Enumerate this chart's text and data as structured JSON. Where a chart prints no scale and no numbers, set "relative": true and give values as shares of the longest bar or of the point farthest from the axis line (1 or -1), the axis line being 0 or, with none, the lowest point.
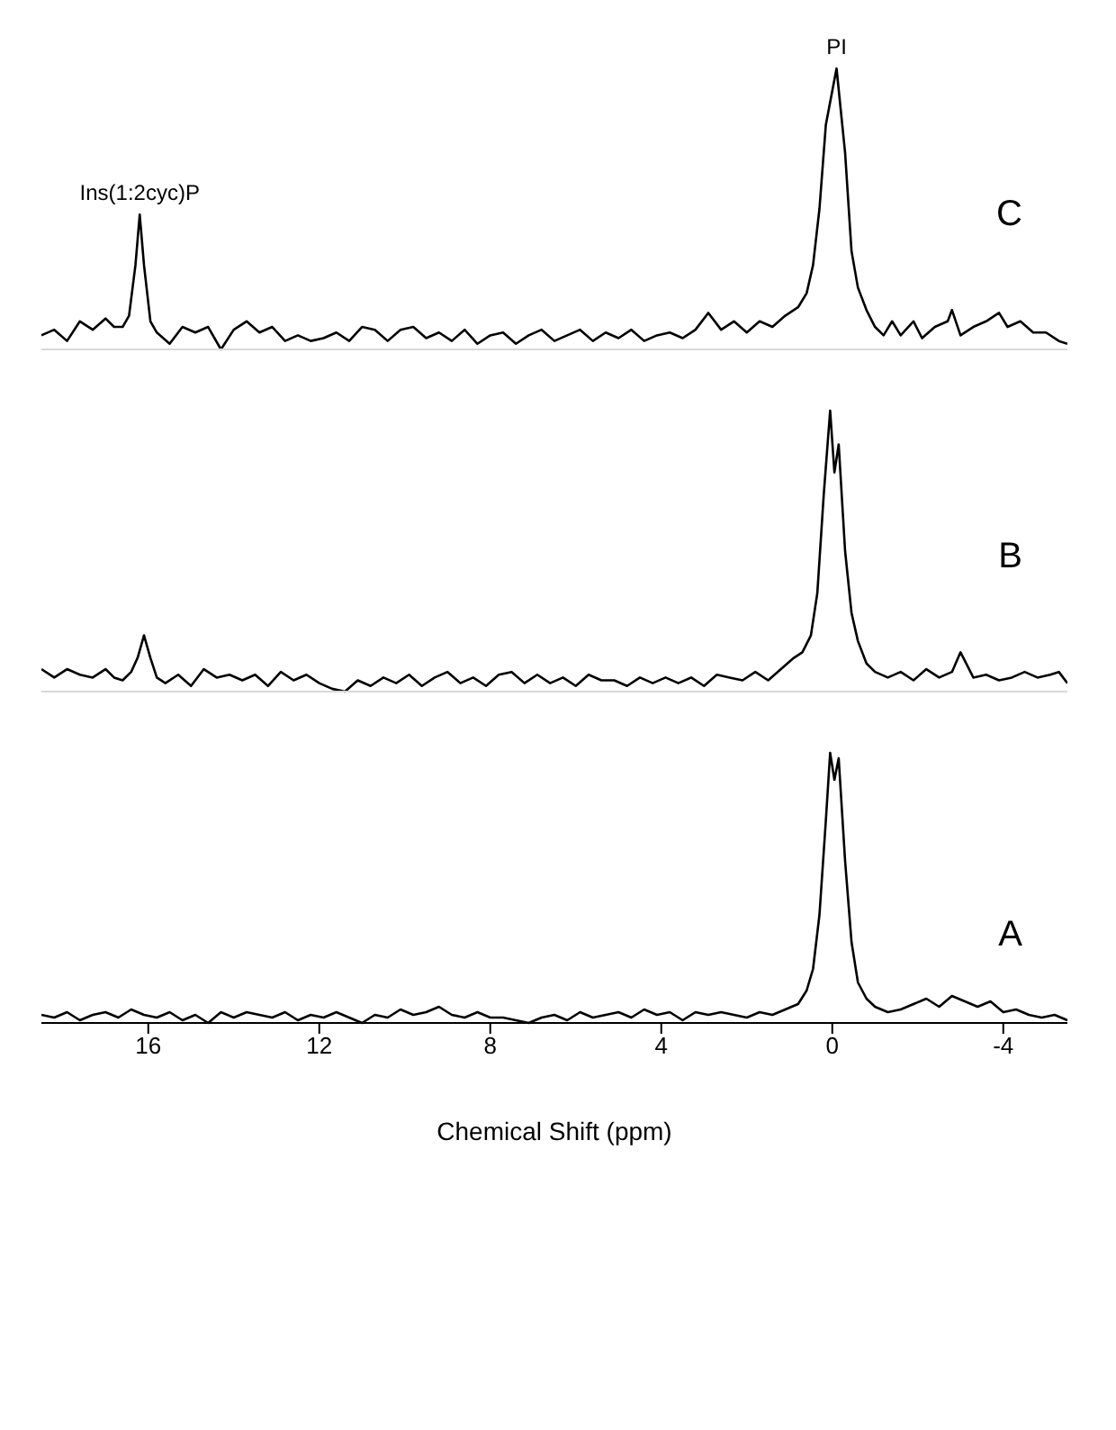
{
  "chart_data": [
    {
      "type": "line",
      "relative": true,
      "xlim": [
        18.5,
        -5.5
      ],
      "xticks": [
        16,
        12,
        8,
        4,
        0,
        -4
      ],
      "tick_labels": false,
      "marker": "none",
      "annotations": [
        {
          "text": "Ins(1:2cyc)P",
          "x": 16.2,
          "y": 0.48
        },
        {
          "text": "PI",
          "x": -0.1,
          "y": 1
        },
        "C"
      ],
      "series": [
        {
          "color": "#000000",
          "x": [
            18.5,
            18.2,
            17.9,
            17.6,
            17.3,
            17.0,
            16.8,
            16.6,
            16.45,
            16.3,
            16.2,
            16.1,
            15.95,
            15.8,
            15.5,
            15.2,
            14.9,
            14.6,
            14.3,
            14.0,
            13.7,
            13.4,
            13.1,
            12.8,
            12.5,
            12.2,
            11.9,
            11.6,
            11.3,
            11.0,
            10.7,
            10.4,
            10.1,
            9.8,
            9.5,
            9.2,
            8.9,
            8.6,
            8.3,
            8.0,
            7.7,
            7.4,
            7.1,
            6.8,
            6.5,
            6.2,
            5.9,
            5.6,
            5.3,
            5.0,
            4.7,
            4.4,
            4.1,
            3.8,
            3.5,
            3.2,
            2.9,
            2.6,
            2.3,
            2.0,
            1.7,
            1.4,
            1.1,
            0.8,
            0.6,
            0.45,
            0.3,
            0.15,
            -0.1,
            -0.3,
            -0.45,
            -0.6,
            -0.8,
            -1.0,
            -1.2,
            -1.4,
            -1.6,
            -1.9,
            -2.1,
            -2.4,
            -2.7,
            -2.8,
            -3.0,
            -3.3,
            -3.6,
            -3.9,
            -4.1,
            -4.4,
            -4.7,
            -5.0,
            -5.3,
            -5.5
          ],
          "values": [
            0.05,
            0.07,
            0.03,
            0.1,
            0.07,
            0.11,
            0.08,
            0.08,
            0.12,
            0.3,
            0.48,
            0.3,
            0.1,
            0.06,
            0.02,
            0.08,
            0.06,
            0.08,
            0.0,
            0.07,
            0.1,
            0.06,
            0.08,
            0.03,
            0.05,
            0.03,
            0.04,
            0.06,
            0.03,
            0.08,
            0.07,
            0.03,
            0.07,
            0.08,
            0.04,
            0.06,
            0.03,
            0.07,
            0.02,
            0.05,
            0.06,
            0.02,
            0.05,
            0.07,
            0.03,
            0.05,
            0.07,
            0.03,
            0.06,
            0.04,
            0.07,
            0.03,
            0.05,
            0.06,
            0.04,
            0.07,
            0.13,
            0.07,
            0.1,
            0.06,
            0.1,
            0.08,
            0.12,
            0.15,
            0.2,
            0.3,
            0.5,
            0.8,
            1.0,
            0.7,
            0.35,
            0.22,
            0.14,
            0.08,
            0.05,
            0.1,
            0.05,
            0.1,
            0.04,
            0.08,
            0.1,
            0.14,
            0.05,
            0.08,
            0.1,
            0.13,
            0.08,
            0.1,
            0.06,
            0.06,
            0.03,
            0.02
          ]
        }
      ]
    },
    {
      "type": "line",
      "relative": true,
      "xlim": [
        18.5,
        -5.5
      ],
      "xticks": [
        16,
        12,
        8,
        4,
        0,
        -4
      ],
      "tick_labels": false,
      "marker": "none",
      "annotations": [
        "B"
      ],
      "series": [
        {
          "color": "#000000",
          "x": [
            18.5,
            18.2,
            17.9,
            17.6,
            17.3,
            17.0,
            16.8,
            16.6,
            16.4,
            16.25,
            16.1,
            15.95,
            15.8,
            15.6,
            15.3,
            15.0,
            14.7,
            14.4,
            14.1,
            13.8,
            13.5,
            13.2,
            12.9,
            12.6,
            12.3,
            12.0,
            11.7,
            11.4,
            11.1,
            10.8,
            10.5,
            10.2,
            9.9,
            9.6,
            9.3,
            9.0,
            8.7,
            8.4,
            8.1,
            7.8,
            7.5,
            7.2,
            6.9,
            6.6,
            6.3,
            6.0,
            5.7,
            5.4,
            5.1,
            4.8,
            4.5,
            4.2,
            3.9,
            3.6,
            3.3,
            3.0,
            2.7,
            2.4,
            2.1,
            1.8,
            1.5,
            1.2,
            0.9,
            0.7,
            0.5,
            0.35,
            0.2,
            0.05,
            -0.05,
            -0.15,
            -0.3,
            -0.45,
            -0.6,
            -0.8,
            -1.0,
            -1.3,
            -1.6,
            -1.9,
            -2.2,
            -2.5,
            -2.8,
            -3.0,
            -3.3,
            -3.6,
            -3.9,
            -4.2,
            -4.5,
            -4.8,
            -5.1,
            -5.3,
            -5.5
          ],
          "values": [
            0.08,
            0.05,
            0.08,
            0.06,
            0.05,
            0.08,
            0.05,
            0.04,
            0.07,
            0.12,
            0.2,
            0.12,
            0.05,
            0.03,
            0.06,
            0.02,
            0.08,
            0.05,
            0.06,
            0.04,
            0.06,
            0.02,
            0.07,
            0.04,
            0.06,
            0.03,
            0.01,
            0.0,
            0.04,
            0.02,
            0.05,
            0.03,
            0.06,
            0.02,
            0.05,
            0.07,
            0.03,
            0.05,
            0.02,
            0.06,
            0.07,
            0.03,
            0.06,
            0.03,
            0.05,
            0.02,
            0.06,
            0.04,
            0.04,
            0.02,
            0.05,
            0.03,
            0.05,
            0.03,
            0.05,
            0.02,
            0.06,
            0.05,
            0.04,
            0.07,
            0.04,
            0.08,
            0.12,
            0.14,
            0.2,
            0.35,
            0.7,
            1.0,
            0.78,
            0.88,
            0.5,
            0.28,
            0.18,
            0.1,
            0.07,
            0.05,
            0.07,
            0.04,
            0.08,
            0.05,
            0.07,
            0.14,
            0.05,
            0.06,
            0.04,
            0.05,
            0.07,
            0.05,
            0.06,
            0.07,
            0.03
          ]
        }
      ]
    },
    {
      "type": "line",
      "relative": true,
      "xlim": [
        18.5,
        -5.5
      ],
      "xticks": [
        16,
        12,
        8,
        4,
        0,
        -4
      ],
      "xlabel": "Chemical Shift (ppm)",
      "tick_labels": "x",
      "marker": "none",
      "annotations": [
        "A"
      ],
      "series": [
        {
          "color": "#000000",
          "x": [
            18.5,
            18.2,
            17.9,
            17.6,
            17.3,
            17.0,
            16.7,
            16.4,
            16.1,
            15.8,
            15.5,
            15.2,
            14.9,
            14.6,
            14.3,
            14.0,
            13.7,
            13.4,
            13.1,
            12.8,
            12.5,
            12.2,
            11.9,
            11.6,
            11.3,
            11.0,
            10.7,
            10.4,
            10.1,
            9.8,
            9.5,
            9.2,
            8.9,
            8.6,
            8.3,
            8.0,
            7.7,
            7.4,
            7.1,
            6.8,
            6.5,
            6.2,
            5.9,
            5.6,
            5.3,
            5.0,
            4.7,
            4.4,
            4.1,
            3.8,
            3.5,
            3.2,
            2.9,
            2.6,
            2.3,
            2.0,
            1.7,
            1.4,
            1.1,
            0.8,
            0.6,
            0.45,
            0.3,
            0.15,
            0.05,
            -0.05,
            -0.15,
            -0.3,
            -0.45,
            -0.6,
            -0.8,
            -1.0,
            -1.3,
            -1.6,
            -1.9,
            -2.2,
            -2.5,
            -2.8,
            -3.1,
            -3.4,
            -3.7,
            -4.0,
            -4.3,
            -4.6,
            -4.9,
            -5.2,
            -5.5
          ],
          "values": [
            0.03,
            0.02,
            0.04,
            0.01,
            0.03,
            0.04,
            0.02,
            0.05,
            0.03,
            0.02,
            0.04,
            0.01,
            0.03,
            0.0,
            0.04,
            0.02,
            0.04,
            0.03,
            0.02,
            0.04,
            0.01,
            0.03,
            0.02,
            0.04,
            0.02,
            0.0,
            0.03,
            0.02,
            0.05,
            0.03,
            0.04,
            0.06,
            0.03,
            0.02,
            0.04,
            0.02,
            0.02,
            0.01,
            0.0,
            0.02,
            0.03,
            0.01,
            0.04,
            0.02,
            0.03,
            0.04,
            0.02,
            0.05,
            0.03,
            0.04,
            0.01,
            0.04,
            0.03,
            0.04,
            0.03,
            0.02,
            0.04,
            0.03,
            0.05,
            0.07,
            0.12,
            0.2,
            0.4,
            0.75,
            1.0,
            0.9,
            0.98,
            0.6,
            0.3,
            0.15,
            0.09,
            0.06,
            0.04,
            0.05,
            0.07,
            0.09,
            0.06,
            0.1,
            0.08,
            0.06,
            0.08,
            0.04,
            0.05,
            0.03,
            0.02,
            0.03,
            0.01
          ]
        }
      ]
    }
  ]
}
